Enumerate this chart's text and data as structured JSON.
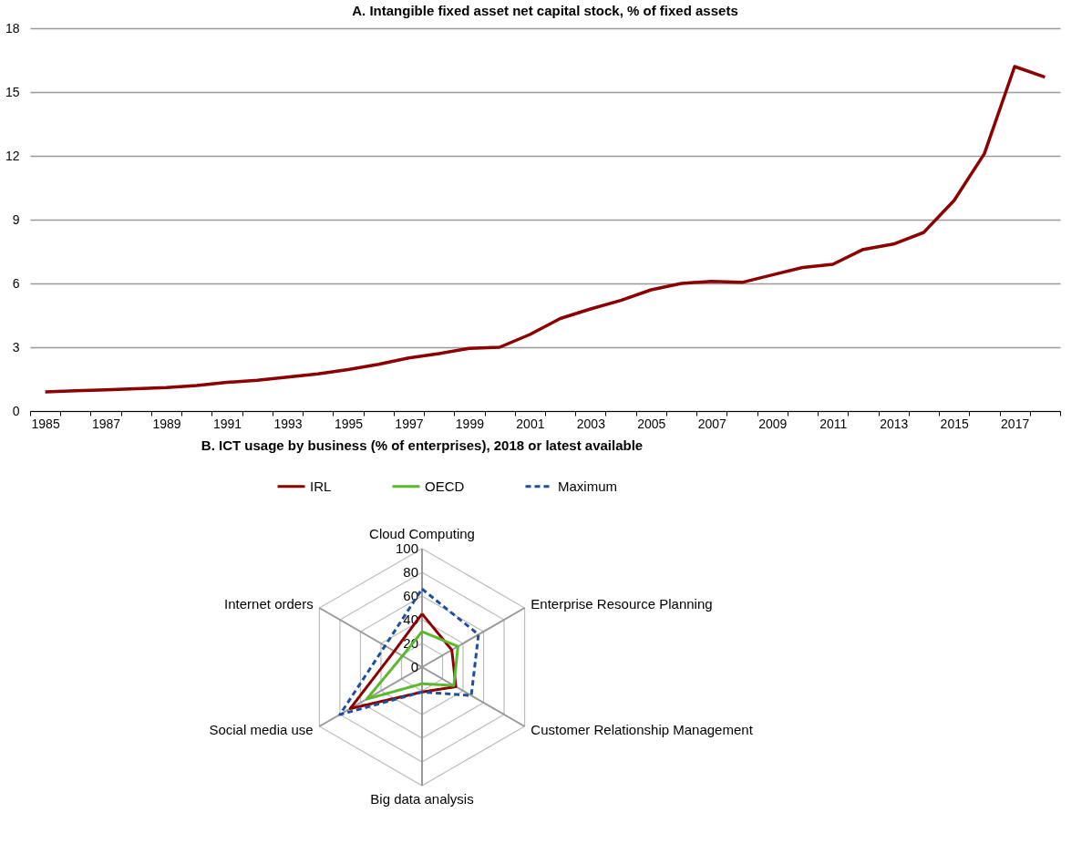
{
  "chart_data": [
    {
      "type": "line",
      "title": "A. Intangible fixed asset net capital stock, % of fixed assets",
      "categories": [
        "1985",
        null,
        "1987",
        null,
        "1989",
        null,
        "1991",
        null,
        "1993",
        null,
        "1995",
        null,
        "1997",
        null,
        "1999",
        null,
        "2001",
        null,
        "2003",
        null,
        "2005",
        null,
        "2007",
        null,
        "2009",
        null,
        "2011",
        null,
        "2013",
        null,
        "2015",
        null,
        "2017",
        null
      ],
      "series": [
        {
          "color": "#8b0000",
          "values": [
            0.9,
            0.95,
            1.0,
            1.05,
            1.1,
            1.2,
            1.35,
            1.45,
            1.6,
            1.75,
            1.95,
            2.2,
            2.5,
            2.7,
            2.95,
            3.0,
            3.6,
            4.35,
            4.8,
            5.2,
            5.7,
            6.0,
            6.1,
            6.05,
            6.4,
            6.75,
            6.9,
            7.6,
            7.85,
            8.4,
            9.9,
            12.1,
            16.2,
            15.7
          ]
        }
      ],
      "ylim": [
        0,
        18
      ],
      "yticks": [
        0,
        3,
        6,
        9,
        12,
        15,
        18
      ],
      "grid": "y"
    },
    {
      "type": "radar",
      "title": "B. ICT usage by business (% of enterprises), 2018 or latest available",
      "categories": [
        "Cloud Computing",
        "Enterprise Resource Planning",
        "Customer Relationship Management",
        "Big data analysis",
        "Social media use",
        "Internet orders"
      ],
      "series": [
        {
          "name": "IRL",
          "color": "#8b0000",
          "values": [
            45,
            29,
            33,
            21,
            70,
            27
          ]
        },
        {
          "name": "OECD",
          "color": "#5cb82e",
          "values": [
            30,
            35,
            31,
            14,
            54,
            19
          ]
        },
        {
          "name": "Maximum",
          "color": "#1f4e9c",
          "line_style": "dashed",
          "values": [
            66,
            55,
            48,
            21,
            80,
            36
          ]
        }
      ],
      "ylim": [
        0,
        100
      ],
      "yticks": [
        0,
        20,
        40,
        60,
        80,
        100
      ],
      "grid": true,
      "legend": "top"
    }
  ]
}
